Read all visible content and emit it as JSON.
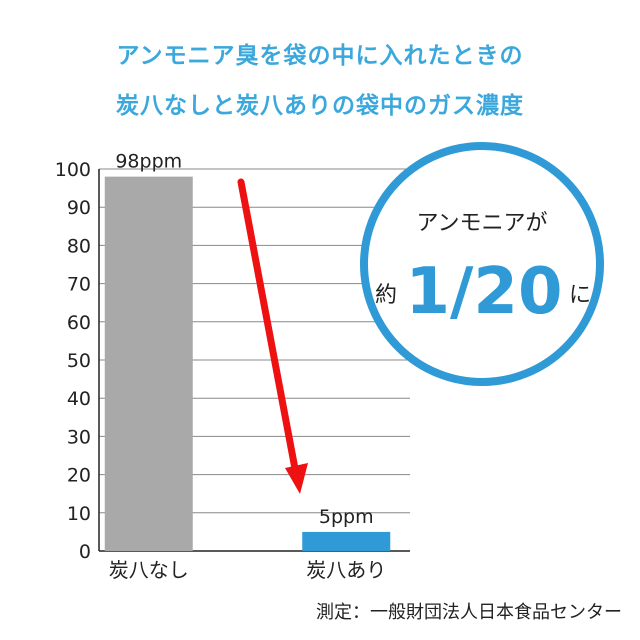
{
  "header": {
    "title_line1": "アンモニア臭を袋の中に入れたときの",
    "title_line2": "炭八なしと炭八ありの袋中のガス濃度"
  },
  "callout": {
    "top_text": "アンモニアが",
    "prefix": "約",
    "value": "1/20",
    "suffix": "に"
  },
  "source": "測定：一般財団法人日本食品センター",
  "colors": {
    "title": "#3aa8dc",
    "bar_without": "#a9a9a9",
    "bar_with": "#2f9ad6",
    "arrow": "#ee1111",
    "circle": "#2f9ad6"
  },
  "chart_data": {
    "type": "bar",
    "categories": [
      "炭八なし",
      "炭八あり"
    ],
    "values": [
      98,
      5
    ],
    "data_labels": [
      "98ppm",
      "5ppm"
    ],
    "ylim": [
      0,
      100
    ],
    "yticks": [
      "0",
      "10",
      "20",
      "30",
      "40",
      "50",
      "60",
      "70",
      "80",
      "90",
      "100"
    ],
    "grid": true
  }
}
